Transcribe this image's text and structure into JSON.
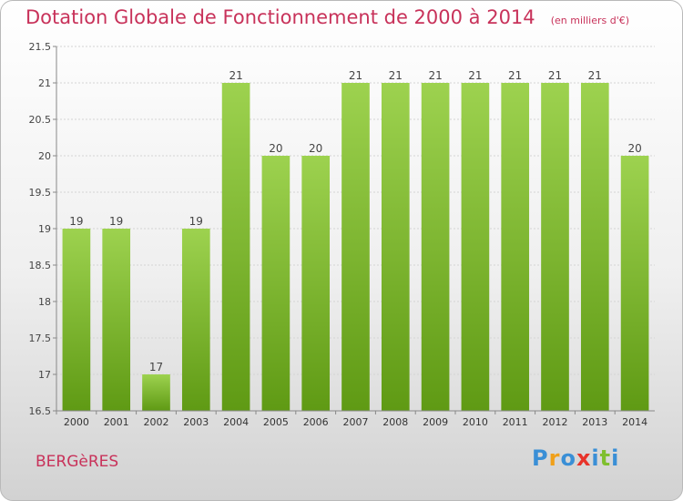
{
  "chart_data": {
    "type": "bar",
    "title": "Dotation Globale de Fonctionnement de 2000 à 2014",
    "subtitle": "(en milliers d'€)",
    "categories": [
      "2000",
      "2001",
      "2002",
      "2003",
      "2004",
      "2005",
      "2006",
      "2007",
      "2008",
      "2009",
      "2010",
      "2011",
      "2012",
      "2013",
      "2014"
    ],
    "values": [
      19,
      19,
      17,
      19,
      21,
      20,
      20,
      21,
      21,
      21,
      21,
      21,
      21,
      21,
      20
    ],
    "ylim": [
      16.5,
      21.5
    ],
    "yticks": [
      "16.5",
      "17",
      "17.5",
      "18",
      "18.5",
      "19",
      "19.5",
      "20",
      "20.5",
      "21",
      "21.5"
    ],
    "grid": true,
    "bar_color": "#7fbf2e"
  },
  "place_name": "BERGèRES",
  "logo": {
    "text": "Proxiti",
    "letter_colors": [
      "#3a8fd6",
      "#f0a01a",
      "#3a8fd6",
      "#e8332a",
      "#3a8fd6",
      "#7fbf2e",
      "#3a8fd6"
    ]
  }
}
